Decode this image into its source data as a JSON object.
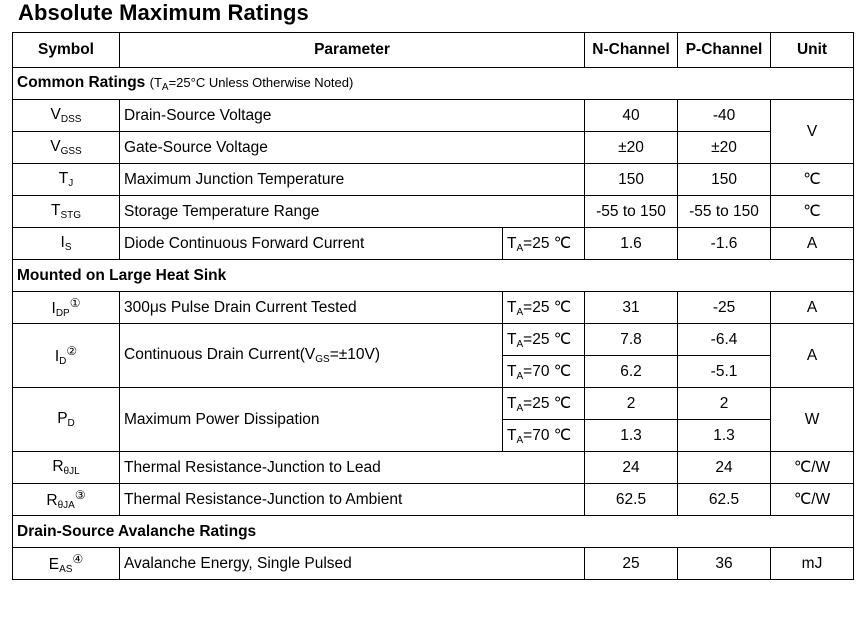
{
  "title": "Absolute Maximum Ratings",
  "headers": {
    "symbol": "Symbol",
    "parameter": "Parameter",
    "n_channel": "N-Channel",
    "p_channel": "P-Channel",
    "unit": "Unit"
  },
  "sections": {
    "common": {
      "title": "Common Ratings",
      "note": "(Tₐ=25°C Unless Otherwise Noted)"
    },
    "heatsink": {
      "title": "Mounted on Large Heat Sink"
    },
    "avalanche": {
      "title": "Drain-Source Avalanche Ratings"
    }
  },
  "rows": {
    "vdss": {
      "sym": "V",
      "sub": "DSS",
      "param": "Drain-Source Voltage",
      "n": "40",
      "p": "-40"
    },
    "vgss": {
      "sym": "V",
      "sub": "GSS",
      "param": "Gate-Source Voltage",
      "n": "±20",
      "p": "±20",
      "unit": "V"
    },
    "tj": {
      "sym": "T",
      "sub": "J",
      "param": "Maximum Junction Temperature",
      "n": "150",
      "p": "150",
      "unit": "℃"
    },
    "tstg": {
      "sym": "T",
      "sub": "STG",
      "param": "Storage Temperature Range",
      "n": "-55 to 150",
      "p": "-55 to 150",
      "unit": "℃"
    },
    "is": {
      "sym": "I",
      "sub": "S",
      "param": "Diode Continuous Forward Current",
      "cond_pre": "T",
      "cond_sub": "A",
      "cond_post": "=25 ℃",
      "n": "1.6",
      "p": "-1.6",
      "unit": "A"
    },
    "idp": {
      "sym": "I",
      "sub": "DP",
      "sup": "①",
      "param": "300μs Pulse Drain Current Tested",
      "cond_pre": "T",
      "cond_sub": "A",
      "cond_post": "=25 ℃",
      "n": "31",
      "p": "-25",
      "unit": "A"
    },
    "id": {
      "sym": "I",
      "sub": "D",
      "sup": "②",
      "param_pre": "Continuous Drain Current(V",
      "param_sub": "GS",
      "param_post": "=±10V)",
      "cond1_pre": "T",
      "cond1_sub": "A",
      "cond1_post": "=25 ℃",
      "n1": "7.8",
      "p1": "-6.4",
      "cond2_pre": "T",
      "cond2_sub": "A",
      "cond2_post": "=70 ℃",
      "n2": "6.2",
      "p2": "-5.1",
      "unit": "A"
    },
    "pd": {
      "sym": "P",
      "sub": "D",
      "param": "Maximum Power Dissipation",
      "cond1_pre": "T",
      "cond1_sub": "A",
      "cond1_post": "=25 ℃",
      "n1": "2",
      "p1": "2",
      "cond2_pre": "T",
      "cond2_sub": "A",
      "cond2_post": "=70 ℃",
      "n2": "1.3",
      "p2": "1.3",
      "unit": "W"
    },
    "rjl": {
      "sym": "R",
      "sub": "θJL",
      "param": "Thermal Resistance-Junction to Lead",
      "n": "24",
      "p": "24",
      "unit": "℃/W"
    },
    "rja": {
      "sym": "R",
      "sub": "θJA",
      "sup": "③",
      "param": "Thermal Resistance-Junction to Ambient",
      "n": "62.5",
      "p": "62.5",
      "unit": "℃/W"
    },
    "eas": {
      "sym": "E",
      "sub": "AS",
      "sup": "④",
      "param": "Avalanche Energy, Single Pulsed",
      "n": "25",
      "p": "36",
      "unit": "mJ"
    }
  }
}
